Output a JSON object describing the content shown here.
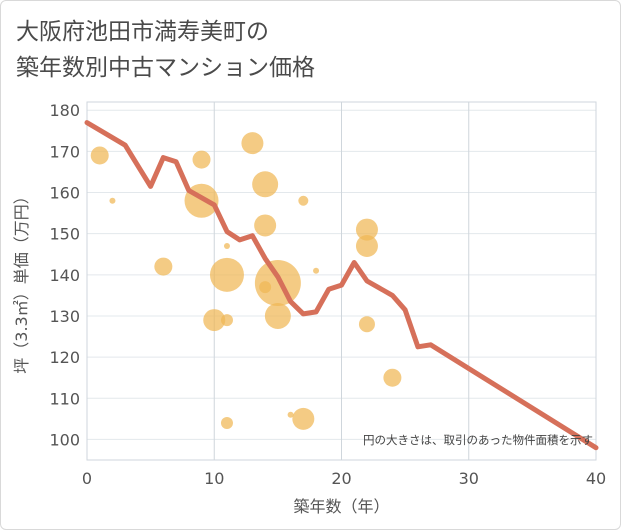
{
  "title_line1": "大阪府池田市満寿美町の",
  "title_line2": "築年数別中古マンション価格",
  "chart_data": {
    "type": "scatter",
    "xlabel": "築年数（年）",
    "ylabel": "坪（3.3㎡）単価（万円）",
    "xlim": [
      0,
      40
    ],
    "ylim": [
      95,
      182
    ],
    "xticks": [
      0,
      10,
      20,
      30,
      40
    ],
    "yticks": [
      100,
      110,
      120,
      130,
      140,
      150,
      160,
      170,
      180
    ],
    "note": "円の大きさは、取引のあった物件面積を示す",
    "bubble_color": "#f0b755",
    "line_color": "#d6705a",
    "bubbles": [
      {
        "x": 1,
        "y": 169,
        "s": 9
      },
      {
        "x": 2,
        "y": 158,
        "s": 3
      },
      {
        "x": 6,
        "y": 142,
        "s": 9
      },
      {
        "x": 9,
        "y": 168,
        "s": 9
      },
      {
        "x": 9,
        "y": 158,
        "s": 17
      },
      {
        "x": 10,
        "y": 129,
        "s": 11
      },
      {
        "x": 11,
        "y": 147,
        "s": 3
      },
      {
        "x": 11,
        "y": 140,
        "s": 17
      },
      {
        "x": 11,
        "y": 129,
        "s": 6
      },
      {
        "x": 11,
        "y": 104,
        "s": 6
      },
      {
        "x": 13,
        "y": 172,
        "s": 11
      },
      {
        "x": 14,
        "y": 162,
        "s": 13
      },
      {
        "x": 14,
        "y": 152,
        "s": 11
      },
      {
        "x": 14,
        "y": 137,
        "s": 6
      },
      {
        "x": 15,
        "y": 138,
        "s": 23
      },
      {
        "x": 15,
        "y": 130,
        "s": 13
      },
      {
        "x": 16,
        "y": 106,
        "s": 3
      },
      {
        "x": 17,
        "y": 158,
        "s": 5
      },
      {
        "x": 17,
        "y": 105,
        "s": 11
      },
      {
        "x": 18,
        "y": 141,
        "s": 3
      },
      {
        "x": 22,
        "y": 151,
        "s": 11
      },
      {
        "x": 22,
        "y": 147,
        "s": 11
      },
      {
        "x": 22,
        "y": 128,
        "s": 8
      },
      {
        "x": 24,
        "y": 115,
        "s": 9
      }
    ],
    "trend": {
      "x": [
        0,
        3,
        5,
        6,
        7,
        8,
        10,
        11,
        12,
        13,
        14,
        15,
        16,
        17,
        18,
        19,
        20,
        21,
        22,
        24,
        25,
        26,
        27,
        40
      ],
      "y": [
        177,
        171.5,
        161.5,
        168.5,
        167.5,
        160.5,
        157,
        150.5,
        148.5,
        149.5,
        144,
        139.5,
        133.5,
        130.5,
        131,
        136.5,
        137.5,
        143,
        138.5,
        135,
        131.5,
        122.5,
        123,
        98
      ]
    }
  }
}
